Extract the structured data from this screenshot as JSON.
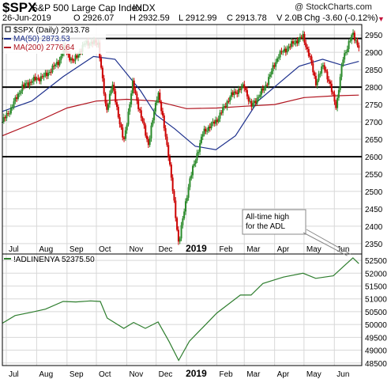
{
  "header": {
    "symbol": "$SPX",
    "name": "S&P 500 Large Cap Index",
    "exchange": "INDX",
    "date": "26-Jun-2019",
    "open": "O 2926.07",
    "high": "H 2932.59",
    "low": "L 2912.99",
    "close": "C 2913.78",
    "volume": "V 2.0B",
    "change": "Chg -3.60 (-0.12%)",
    "change_arrow": "▼",
    "watermark": "@ StockCharts.com"
  },
  "colors": {
    "up": "#2a8a2a",
    "down": "#cc0000",
    "ma50": "#1c2f8c",
    "ma200": "#b0131e",
    "adl": "#2d7d2d",
    "grid": "#d8d8d8",
    "hline": "#000000"
  },
  "chart_data": [
    {
      "type": "candlestick",
      "legend": [
        {
          "label": "$SPX (Daily) 2913.78",
          "color": "#000000"
        },
        {
          "label": "MA(50) 2873.53",
          "color": "#1c2f8c"
        },
        {
          "label": "MA(200) 2776.64",
          "color": "#b0131e"
        }
      ],
      "x_ticks": [
        "Jul",
        "Aug",
        "Sep",
        "Oct",
        "Nov",
        "Dec",
        "2019",
        "Feb",
        "Mar",
        "Apr",
        "May",
        "Jun"
      ],
      "ylim": [
        2320,
        2980
      ],
      "y_ticks": [
        2350,
        2400,
        2450,
        2500,
        2550,
        2600,
        2650,
        2700,
        2750,
        2800,
        2850,
        2900,
        2950
      ],
      "horizontal_lines": [
        2940,
        2800,
        2600
      ],
      "close_path": [
        [
          "2018-06-27",
          2700
        ],
        [
          "2018-07-05",
          2735
        ],
        [
          "2018-07-17",
          2800
        ],
        [
          "2018-07-27",
          2818
        ],
        [
          "2018-08-10",
          2833
        ],
        [
          "2018-08-24",
          2875
        ],
        [
          "2018-08-29",
          2912
        ],
        [
          "2018-09-07",
          2872
        ],
        [
          "2018-09-20",
          2928
        ],
        [
          "2018-10-03",
          2926
        ],
        [
          "2018-10-11",
          2728
        ],
        [
          "2018-10-17",
          2810
        ],
        [
          "2018-10-29",
          2640
        ],
        [
          "2018-11-07",
          2810
        ],
        [
          "2018-11-23",
          2635
        ],
        [
          "2018-12-03",
          2790
        ],
        [
          "2018-12-14",
          2600
        ],
        [
          "2018-12-24",
          2351
        ],
        [
          "2019-01-04",
          2530
        ],
        [
          "2019-01-18",
          2670
        ],
        [
          "2019-02-01",
          2705
        ],
        [
          "2019-02-15",
          2775
        ],
        [
          "2019-03-01",
          2803
        ],
        [
          "2019-03-08",
          2743
        ],
        [
          "2019-03-22",
          2800
        ],
        [
          "2019-04-05",
          2892
        ],
        [
          "2019-04-23",
          2933
        ],
        [
          "2019-04-30",
          2945
        ],
        [
          "2019-05-07",
          2885
        ],
        [
          "2019-05-13",
          2812
        ],
        [
          "2019-05-21",
          2865
        ],
        [
          "2019-06-03",
          2744
        ],
        [
          "2019-06-10",
          2886
        ],
        [
          "2019-06-20",
          2954
        ],
        [
          "2019-06-26",
          2914
        ]
      ],
      "ma50": [
        [
          "2018-06-27",
          2730
        ],
        [
          "2018-07-27",
          2760
        ],
        [
          "2018-08-28",
          2830
        ],
        [
          "2018-09-28",
          2888
        ],
        [
          "2018-10-20",
          2880
        ],
        [
          "2018-11-15",
          2790
        ],
        [
          "2018-12-01",
          2720
        ],
        [
          "2018-12-20",
          2680
        ],
        [
          "2019-01-10",
          2630
        ],
        [
          "2019-01-31",
          2620
        ],
        [
          "2019-02-20",
          2660
        ],
        [
          "2019-03-15",
          2760
        ],
        [
          "2019-04-05",
          2810
        ],
        [
          "2019-04-26",
          2860
        ],
        [
          "2019-05-20",
          2880
        ],
        [
          "2019-06-10",
          2862
        ],
        [
          "2019-06-26",
          2874
        ]
      ],
      "ma200": [
        [
          "2018-06-27",
          2660
        ],
        [
          "2018-08-01",
          2700
        ],
        [
          "2018-09-01",
          2740
        ],
        [
          "2018-10-01",
          2760
        ],
        [
          "2018-11-01",
          2765
        ],
        [
          "2018-12-01",
          2760
        ],
        [
          "2019-01-01",
          2738
        ],
        [
          "2019-02-01",
          2740
        ],
        [
          "2019-03-01",
          2745
        ],
        [
          "2019-04-01",
          2750
        ],
        [
          "2019-05-01",
          2770
        ],
        [
          "2019-06-01",
          2775
        ],
        [
          "2019-06-26",
          2777
        ]
      ],
      "annotation": "All-time high\nfor the ADL"
    },
    {
      "type": "line",
      "legend": [
        {
          "label": "!ADLINENYA 52375.50",
          "color": "#2d7d2d"
        }
      ],
      "x_ticks": [
        "Jul",
        "Aug",
        "Sep",
        "Oct",
        "Nov",
        "Dec",
        "2019",
        "Feb",
        "Mar",
        "Apr",
        "May",
        "Jun"
      ],
      "ylim": [
        48400,
        52750
      ],
      "y_ticks": [
        48500,
        49000,
        49500,
        50000,
        50500,
        51000,
        51500,
        52000,
        52500
      ],
      "series": [
        {
          "x": [
            "2018-06-27",
            "2018-07-10",
            "2018-07-27",
            "2018-08-10",
            "2018-08-28",
            "2018-09-10",
            "2018-09-25",
            "2018-10-05",
            "2018-10-12",
            "2018-10-29",
            "2018-11-08",
            "2018-11-20",
            "2018-12-03",
            "2018-12-14",
            "2018-12-24",
            "2019-01-04",
            "2019-01-18",
            "2019-02-01",
            "2019-02-25",
            "2019-03-08",
            "2019-03-20",
            "2019-04-10",
            "2019-04-30",
            "2019-05-13",
            "2019-05-31",
            "2019-06-10",
            "2019-06-20",
            "2019-06-26"
          ],
          "y": [
            50050,
            50350,
            50480,
            50600,
            50900,
            50880,
            50920,
            50900,
            50250,
            49850,
            50080,
            49850,
            50100,
            49350,
            48600,
            49350,
            49900,
            50450,
            51150,
            51150,
            51600,
            51850,
            52000,
            51800,
            51900,
            52250,
            52600,
            52375
          ]
        }
      ]
    }
  ]
}
